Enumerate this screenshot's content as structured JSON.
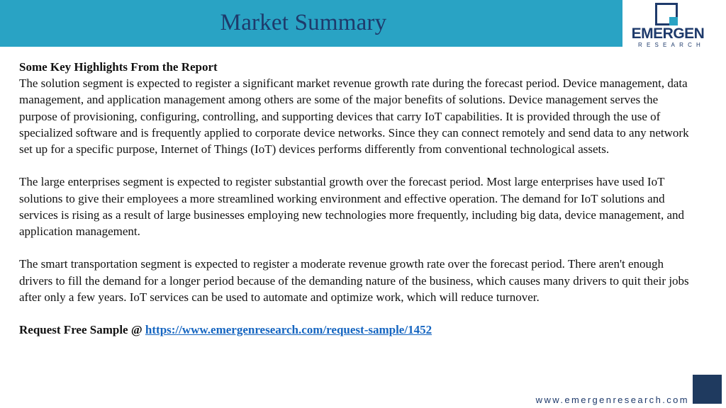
{
  "header": {
    "title": "Market Summary"
  },
  "logo": {
    "word": "EMERGEN",
    "sub": "RESEARCH"
  },
  "content": {
    "heading": "Some Key Highlights From the Report",
    "paragraphs": [
      "The solution segment is expected to register a significant market revenue growth rate during the forecast period. Device management, data management, and application management among others are some of the major benefits of solutions. Device management serves the purpose of provisioning, configuring, controlling, and supporting devices that carry IoT capabilities. It is provided through the use of specialized software and is frequently applied to corporate device networks. Since they can connect remotely and send data to any network set up for a specific purpose, Internet of Things (IoT) devices performs differently from conventional technological assets.",
      "The large enterprises segment is expected to register substantial growth over the forecast period. Most large enterprises have used IoT solutions to give their employees a more streamlined working environment and effective operation. The demand for IoT solutions and services is rising as a result of large businesses employing new technologies more frequently, including big data, device management, and application management.",
      "The smart transportation segment is expected to register a moderate revenue growth rate over the forecast period. There aren't enough drivers to fill the demand for a longer period because of the demanding nature of the business, which causes many drivers to quit their jobs after only a few years. IoT services can be used to automate and optimize work, which will reduce turnover."
    ],
    "request_label": "Request Free Sample @ ",
    "request_link": "https://www.emergenresearch.com/request-sample/1452"
  },
  "footer": {
    "url": "www.emergenresearch.com"
  },
  "colors": {
    "header_band": "#29a3c4",
    "title": "#1e3a6b",
    "link": "#1565c0",
    "corner_square": "#1f3a5f"
  }
}
